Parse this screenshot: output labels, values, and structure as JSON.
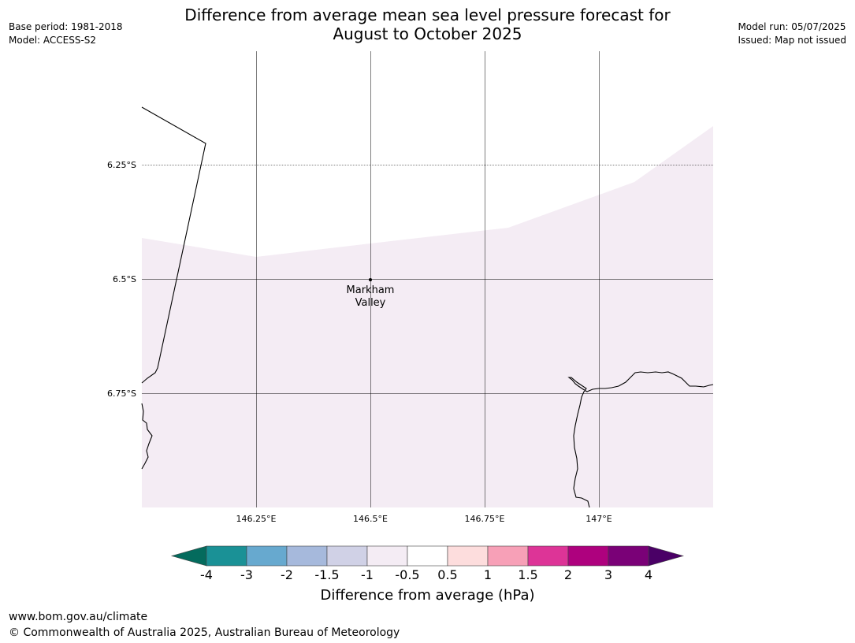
{
  "header": {
    "title_line1": "Difference from average mean sea level pressure forecast for",
    "title_line2": "August to October 2025",
    "base_period": "Base period: 1981-2018",
    "model": "Model: ACCESS-S2",
    "model_run": "Model run: 05/07/2025",
    "issued": "Issued: Map not issued"
  },
  "map": {
    "lat_labels": [
      "6.25°S",
      "6.5°S",
      "6.75°S"
    ],
    "lon_labels": [
      "146.25°E",
      "146.5°E",
      "146.75°E",
      "147°E"
    ],
    "place": {
      "name_line1": "Markham",
      "name_line2": "Valley",
      "lon": 146.5,
      "lat": -6.5
    },
    "background_color": "#ffffff",
    "anomaly_fill_color": "#f4ecf4",
    "anomaly_fill_category": "-1 to -0.5"
  },
  "colorbar": {
    "label": "Difference from average (hPa)",
    "ticks": [
      "-4",
      "-3",
      "-2",
      "-1.5",
      "-1",
      "-0.5",
      "0.5",
      "1",
      "1.5",
      "2",
      "3",
      "4"
    ],
    "under_color": "#046b5d",
    "over_color": "#4a0066",
    "colors": [
      "#1a9196",
      "#67a9cf",
      "#a6b9dc",
      "#d0d1e6",
      "#f4ecf4",
      "#ffffff",
      "#fddddd",
      "#f7a0b7",
      "#dd3497",
      "#ae017e",
      "#7a0177"
    ]
  },
  "footer": {
    "url": "www.bom.gov.au/climate",
    "copyright": "© Commonwealth of Australia 2025, Australian Bureau of Meteorology"
  }
}
